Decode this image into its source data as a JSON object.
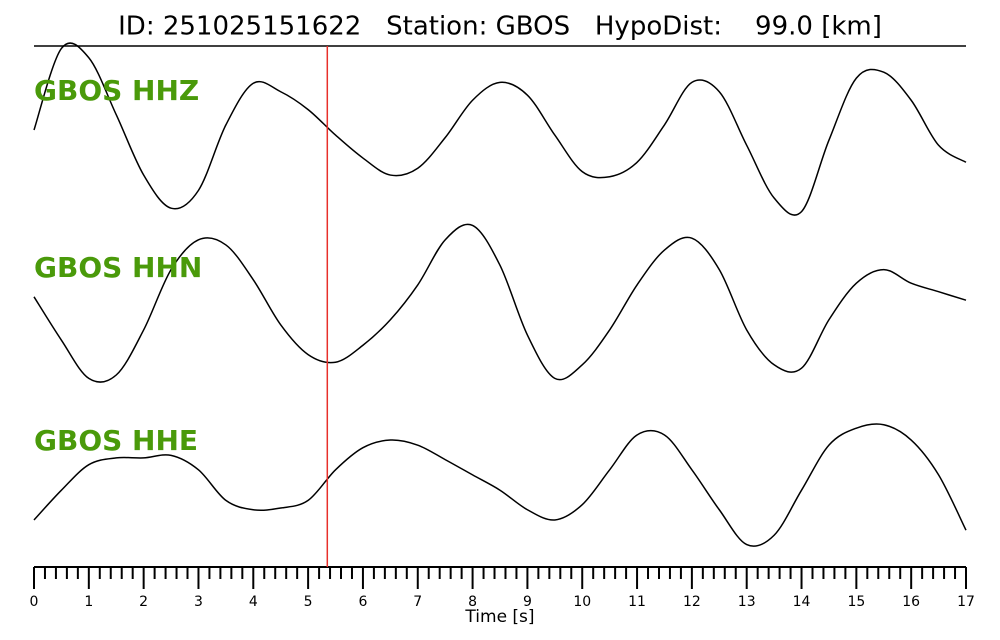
{
  "chart_data": {
    "type": "seismogram",
    "title": "ID: 251025151622   Station: GBOS   HypoDist:    99.0 [km]",
    "xlabel": "Time [s]",
    "x": [
      0,
      0.5,
      1,
      1.5,
      2,
      2.5,
      3,
      3.5,
      4,
      4.5,
      5,
      5.5,
      6,
      6.5,
      7,
      7.5,
      8,
      8.5,
      9,
      9.5,
      10,
      10.5,
      11,
      11.5,
      12,
      12.5,
      13,
      13.5,
      14,
      14.5,
      15,
      15.5,
      16,
      16.5,
      17
    ],
    "xlim": [
      0,
      17
    ],
    "xticks": [
      0,
      1,
      2,
      3,
      4,
      5,
      6,
      7,
      8,
      9,
      10,
      11,
      12,
      13,
      14,
      15,
      16,
      17
    ],
    "minor_ticks_per_major": 5,
    "ylim": [
      -1,
      1
    ],
    "marker_x": 5.35,
    "marker_color": "#e8302a",
    "label_color": "#4a9a0a",
    "line_color": "#000000",
    "series": [
      {
        "name": "GBOS HHZ",
        "values": [
          0,
          0.96,
          0.85,
          0.18,
          -0.53,
          -0.92,
          -0.71,
          0.06,
          0.55,
          0.45,
          0.24,
          -0.06,
          -0.33,
          -0.53,
          -0.45,
          -0.09,
          0.35,
          0.56,
          0.41,
          -0.06,
          -0.49,
          -0.55,
          -0.38,
          0.06,
          0.56,
          0.45,
          -0.18,
          -0.8,
          -0.96,
          -0.12,
          0.61,
          0.68,
          0.35,
          -0.18,
          -0.38
        ]
      },
      {
        "name": "GBOS HHN",
        "values": [
          0.12,
          -0.39,
          -0.84,
          -0.8,
          -0.27,
          0.44,
          0.79,
          0.73,
          0.32,
          -0.21,
          -0.56,
          -0.65,
          -0.45,
          -0.15,
          0.26,
          0.79,
          0.96,
          0.49,
          -0.33,
          -0.84,
          -0.68,
          -0.27,
          0.26,
          0.67,
          0.81,
          0.44,
          -0.27,
          -0.68,
          -0.72,
          -0.15,
          0.28,
          0.44,
          0.28,
          0.18,
          0.08
        ]
      },
      {
        "name": "GBOS HHE",
        "values": [
          -0.47,
          -0.12,
          0.18,
          0.26,
          0.26,
          0.29,
          0.12,
          -0.24,
          -0.35,
          -0.33,
          -0.24,
          0.12,
          0.38,
          0.47,
          0.41,
          0.24,
          0.06,
          -0.12,
          -0.35,
          -0.47,
          -0.29,
          0.12,
          0.53,
          0.53,
          0.12,
          -0.35,
          -0.76,
          -0.65,
          -0.12,
          0.41,
          0.61,
          0.65,
          0.47,
          0.06,
          -0.59
        ]
      }
    ]
  }
}
